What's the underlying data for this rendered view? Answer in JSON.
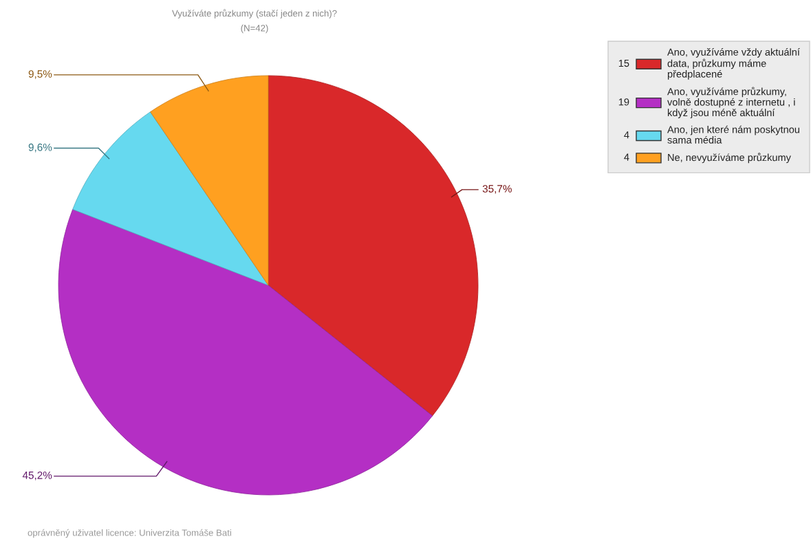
{
  "chart_data": {
    "type": "pie",
    "title": "Využíváte průzkumy (stačí jeden z nich)?",
    "subtitle": "(N=42)",
    "categories": [
      "Ano, využíváme vždy aktuální data, průzkumy máme předplacené",
      "Ano, využíváme průzkumy, volně dostupné z internetu , i když jsou méně aktuální",
      "Ano, jen které nám poskytnou sama média",
      "Ne, nevyužíváme průzkumy"
    ],
    "values": [
      35.7,
      45.2,
      9.6,
      9.5
    ],
    "value_labels": [
      "35,7%",
      "45,2%",
      "9,6%",
      "9,5%"
    ],
    "colors": [
      "#d9282a",
      "#b42fc4",
      "#66d9ef",
      "#ffa020"
    ],
    "legend": "top right",
    "annotations": [
      "15",
      "19",
      "4",
      "4",
      "oprávněný uživatel licence: Univerzita Tomáše Bati"
    ]
  }
}
